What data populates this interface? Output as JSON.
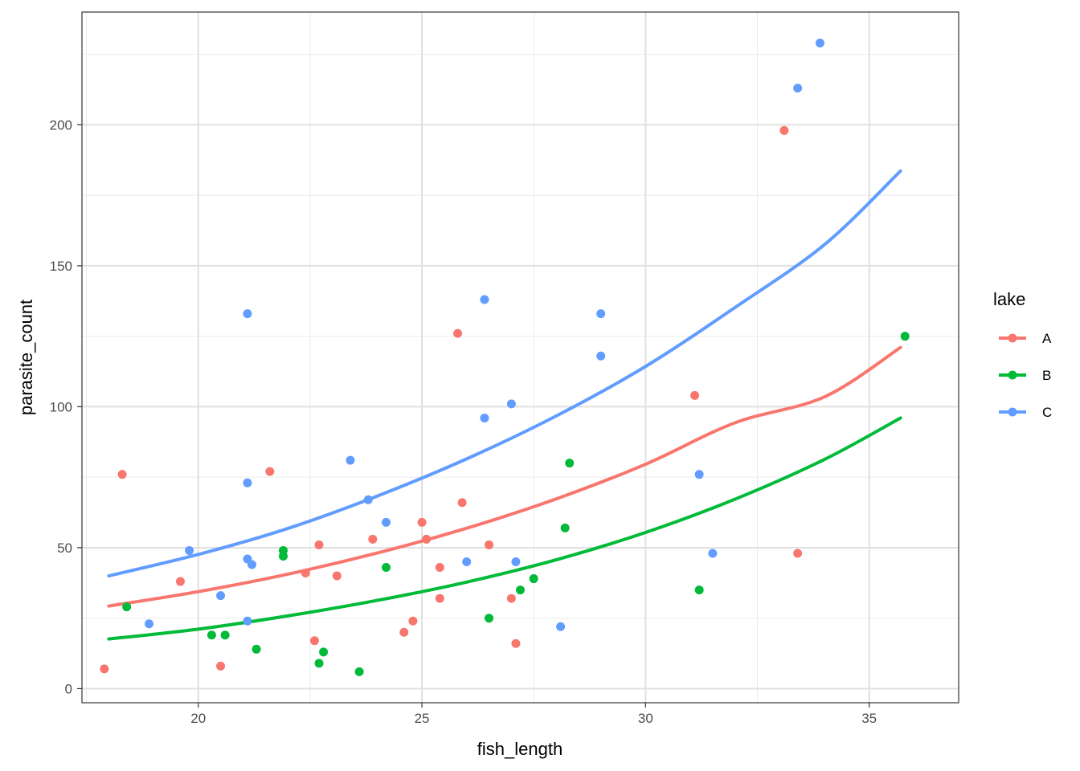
{
  "chart_data": {
    "type": "scatter",
    "xlabel": "fish_length",
    "ylabel": "parasite_count",
    "xlim": [
      17.4,
      37.0
    ],
    "ylim": [
      -5,
      240
    ],
    "x_ticks": [
      20,
      25,
      30,
      35
    ],
    "y_ticks": [
      0,
      50,
      100,
      150,
      200
    ],
    "x_tick_labels": [
      "20",
      "25",
      "30",
      "35"
    ],
    "y_tick_labels": [
      "0",
      "50",
      "100",
      "150",
      "200"
    ],
    "grid": true,
    "legend": {
      "title": "lake",
      "placement": "right"
    },
    "series": [
      {
        "name": "A",
        "color": "#F8766D",
        "points": [
          [
            17.9,
            7
          ],
          [
            18.3,
            76
          ],
          [
            19.6,
            38
          ],
          [
            20.5,
            8
          ],
          [
            21.6,
            77
          ],
          [
            22.4,
            41
          ],
          [
            22.6,
            17
          ],
          [
            22.7,
            51
          ],
          [
            23.1,
            40
          ],
          [
            23.9,
            53
          ],
          [
            24.6,
            20
          ],
          [
            24.8,
            24
          ],
          [
            25.0,
            59
          ],
          [
            25.1,
            53
          ],
          [
            25.4,
            43
          ],
          [
            25.4,
            32
          ],
          [
            25.8,
            126
          ],
          [
            25.9,
            66
          ],
          [
            26.5,
            51
          ],
          [
            27.0,
            32
          ],
          [
            27.1,
            16
          ],
          [
            31.1,
            104
          ],
          [
            33.1,
            198
          ],
          [
            33.4,
            48
          ]
        ],
        "fit": [
          [
            18,
            29.3
          ],
          [
            20,
            34.4
          ],
          [
            22,
            40.6
          ],
          [
            24,
            48.1
          ],
          [
            26,
            56.9
          ],
          [
            28,
            67.3
          ],
          [
            30,
            79.6
          ],
          [
            32,
            94.3
          ],
          [
            34,
            103.5
          ],
          [
            35.7,
            121
          ]
        ]
      },
      {
        "name": "B",
        "color": "#00BA38",
        "points": [
          [
            18.4,
            29
          ],
          [
            20.3,
            19
          ],
          [
            20.6,
            19
          ],
          [
            21.3,
            14
          ],
          [
            21.9,
            49
          ],
          [
            21.9,
            47
          ],
          [
            22.7,
            9
          ],
          [
            22.8,
            13
          ],
          [
            23.6,
            6
          ],
          [
            24.2,
            43
          ],
          [
            26.5,
            25
          ],
          [
            27.2,
            35
          ],
          [
            27.5,
            39
          ],
          [
            28.2,
            57
          ],
          [
            28.3,
            80
          ],
          [
            31.2,
            35
          ],
          [
            35.8,
            125
          ]
        ],
        "fit": [
          [
            18,
            17.6
          ],
          [
            20,
            21.1
          ],
          [
            22,
            25.8
          ],
          [
            24,
            31.3
          ],
          [
            26,
            37.8
          ],
          [
            28,
            45.7
          ],
          [
            30,
            55.4
          ],
          [
            32,
            67.2
          ],
          [
            34,
            81.3
          ],
          [
            35.7,
            96
          ]
        ]
      },
      {
        "name": "C",
        "color": "#619CFF",
        "points": [
          [
            18.9,
            23
          ],
          [
            19.8,
            49
          ],
          [
            20.5,
            33
          ],
          [
            21.1,
            133
          ],
          [
            21.1,
            73
          ],
          [
            21.1,
            46
          ],
          [
            21.1,
            24
          ],
          [
            21.2,
            44
          ],
          [
            23.4,
            81
          ],
          [
            23.8,
            67
          ],
          [
            24.2,
            59
          ],
          [
            26.0,
            45
          ],
          [
            26.4,
            138
          ],
          [
            26.4,
            96
          ],
          [
            27.0,
            101
          ],
          [
            27.1,
            45
          ],
          [
            28.1,
            22
          ],
          [
            29.0,
            133
          ],
          [
            29.0,
            118
          ],
          [
            31.2,
            76
          ],
          [
            31.5,
            48
          ],
          [
            33.4,
            213
          ],
          [
            33.9,
            229
          ]
        ],
        "fit": [
          [
            18,
            40.0
          ],
          [
            20,
            47.6
          ],
          [
            22,
            56.8
          ],
          [
            24,
            68.3
          ],
          [
            26,
            81.5
          ],
          [
            28,
            96.7
          ],
          [
            30,
            114.3
          ],
          [
            32,
            135.2
          ],
          [
            34,
            157.5
          ],
          [
            35.7,
            183.6
          ]
        ]
      }
    ]
  }
}
